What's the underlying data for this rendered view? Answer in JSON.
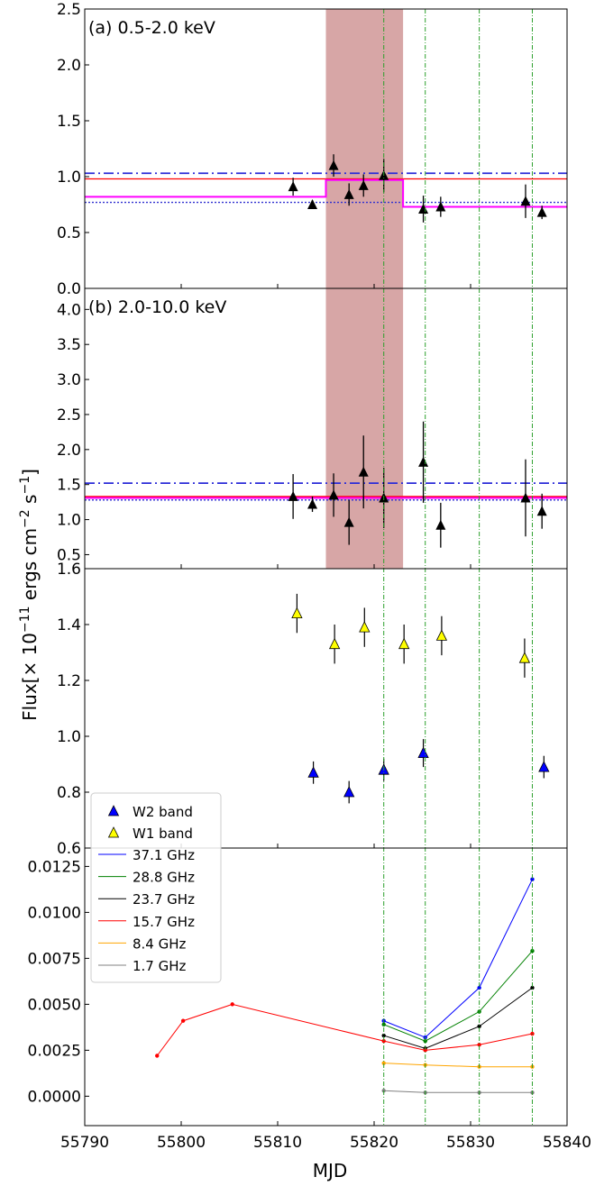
{
  "chart_data": {
    "type": "scatter",
    "xlabel": "MJD",
    "ylabel_parts": [
      "Flux[× 10",
      "−11",
      " ergs cm",
      "−2",
      " s",
      "−1",
      "]"
    ],
    "xlim": [
      55790,
      55840
    ],
    "xticks": [
      55790,
      55800,
      55810,
      55820,
      55830,
      55840
    ],
    "shade_range": [
      55815.0,
      55823.0
    ],
    "shade_color": "#d7a6a6",
    "vlines": [
      55821.0,
      55825.3,
      55830.9,
      55836.4
    ],
    "vline_color": "#2ca02c",
    "panels": [
      {
        "id": "a",
        "label": "(a) 0.5-2.0 keV",
        "ylim": [
          0.0,
          2.5
        ],
        "yticks": [
          "0.0",
          "0.5",
          "1.0",
          "1.5",
          "2.0",
          "2.5"
        ],
        "points": [
          {
            "x": 55811.6,
            "y": 0.91,
            "err": 0.08
          },
          {
            "x": 55813.6,
            "y": 0.75,
            "err": 0.04
          },
          {
            "x": 55815.8,
            "y": 1.1,
            "err": 0.1
          },
          {
            "x": 55817.4,
            "y": 0.84,
            "err": 0.1
          },
          {
            "x": 55818.9,
            "y": 0.92,
            "err": 0.1
          },
          {
            "x": 55821.0,
            "y": 1.01,
            "err": 0.15
          },
          {
            "x": 55825.1,
            "y": 0.71,
            "err": 0.12
          },
          {
            "x": 55826.9,
            "y": 0.73,
            "err": 0.09
          },
          {
            "x": 55835.7,
            "y": 0.78,
            "err": 0.15
          },
          {
            "x": 55837.4,
            "y": 0.68,
            "err": 0.06
          }
        ],
        "hline_dashdot": 1.03,
        "hline_solid": 0.98,
        "hline_dotted": 0.77,
        "step": [
          {
            "x0": 55790.0,
            "x1": 55815.0,
            "y": 0.82
          },
          {
            "x0": 55815.0,
            "x1": 55823.0,
            "y": 0.97
          },
          {
            "x0": 55823.0,
            "x1": 55840.0,
            "y": 0.73
          }
        ]
      },
      {
        "id": "b",
        "label": "(b) 2.0-10.0 keV",
        "ylim": [
          0.3,
          4.3
        ],
        "yticks": [
          "0.5",
          "1.0",
          "1.5",
          "2.0",
          "2.5",
          "3.0",
          "3.5",
          "4.0"
        ],
        "points": [
          {
            "x": 55811.6,
            "y": 1.33,
            "err": 0.32
          },
          {
            "x": 55813.6,
            "y": 1.22,
            "err": 0.11
          },
          {
            "x": 55815.8,
            "y": 1.35,
            "err": 0.31
          },
          {
            "x": 55817.4,
            "y": 0.96,
            "err": 0.32
          },
          {
            "x": 55818.9,
            "y": 1.68,
            "err": 0.52
          },
          {
            "x": 55821.0,
            "y": 1.31,
            "err": 0.43
          },
          {
            "x": 55825.1,
            "y": 1.82,
            "err": 0.58
          },
          {
            "x": 55826.9,
            "y": 0.92,
            "err": 0.32
          },
          {
            "x": 55835.7,
            "y": 1.31,
            "err": 0.55
          },
          {
            "x": 55837.4,
            "y": 1.12,
            "err": 0.25
          }
        ],
        "hline_dashdot": 1.52,
        "hline_solid": 1.33,
        "hline_dotted": 1.28,
        "step": [
          {
            "x0": 55790.0,
            "x1": 55840.0,
            "y": 1.31
          }
        ]
      },
      {
        "id": "c",
        "ylim": [
          0.6,
          1.6
        ],
        "yticks": [
          "0.6",
          "0.8",
          "1.0",
          "1.2",
          "1.4",
          "1.6"
        ],
        "series": [
          {
            "name": "W2 band",
            "color": "#0000ff",
            "points": [
              {
                "x": 55813.7,
                "y": 0.87,
                "err": 0.04
              },
              {
                "x": 55817.4,
                "y": 0.8,
                "err": 0.04
              },
              {
                "x": 55821.0,
                "y": 0.88,
                "err": 0.04
              },
              {
                "x": 55825.1,
                "y": 0.94,
                "err": 0.05
              },
              {
                "x": 55837.6,
                "y": 0.89,
                "err": 0.04
              }
            ]
          },
          {
            "name": "W1 band",
            "color": "#ffff00",
            "points": [
              {
                "x": 55812.0,
                "y": 1.44,
                "err": 0.07
              },
              {
                "x": 55815.9,
                "y": 1.33,
                "err": 0.07
              },
              {
                "x": 55819.0,
                "y": 1.39,
                "err": 0.07
              },
              {
                "x": 55823.1,
                "y": 1.33,
                "err": 0.07
              },
              {
                "x": 55827.0,
                "y": 1.36,
                "err": 0.07
              },
              {
                "x": 55835.6,
                "y": 1.28,
                "err": 0.07
              }
            ]
          }
        ]
      },
      {
        "id": "d",
        "ylim": [
          -0.0016,
          0.0135
        ],
        "yticks": [
          "0.0000",
          "0.0025",
          "0.0050",
          "0.0075",
          "0.0100",
          "0.0125"
        ],
        "series": [
          {
            "name": "37.1 GHz",
            "color": "#0000ff",
            "x": [
              55821.0,
              55825.3,
              55830.9,
              55836.4
            ],
            "y": [
              0.0041,
              0.0032,
              0.0059,
              0.0118
            ]
          },
          {
            "name": "28.8 GHz",
            "color": "#008000",
            "x": [
              55821.0,
              55825.3,
              55830.9,
              55836.4
            ],
            "y": [
              0.0039,
              0.003,
              0.0046,
              0.0079
            ]
          },
          {
            "name": "23.7 GHz",
            "color": "#000000",
            "x": [
              55821.0,
              55825.3,
              55830.9,
              55836.4
            ],
            "y": [
              0.0033,
              0.0026,
              0.0038,
              0.0059
            ]
          },
          {
            "name": "15.7 GHz",
            "color": "#ff0000",
            "x": [
              55797.5,
              55800.2,
              55805.3,
              55821.0,
              55825.3,
              55830.9,
              55836.4
            ],
            "y": [
              0.0022,
              0.0041,
              0.005,
              0.003,
              0.0025,
              0.0028,
              0.0034
            ]
          },
          {
            "name": "8.4 GHz",
            "color": "#ffa500",
            "x": [
              55821.0,
              55825.3,
              55830.9,
              55836.4
            ],
            "y": [
              0.0018,
              0.0017,
              0.0016,
              0.0016
            ]
          },
          {
            "name": "1.7 GHz",
            "color": "#808080",
            "x": [
              55821.0,
              55825.3,
              55830.9,
              55836.4
            ],
            "y": [
              0.0003,
              0.0002,
              0.0002,
              0.0002
            ]
          }
        ]
      }
    ]
  }
}
